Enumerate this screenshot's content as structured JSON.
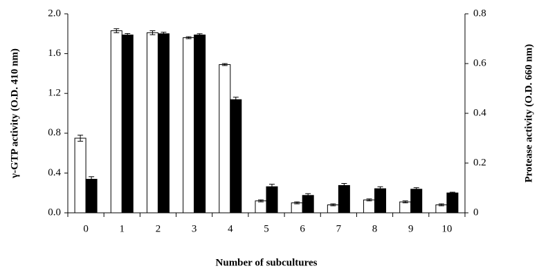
{
  "chart_data": {
    "type": "bar",
    "x_label": "Number of subcultures",
    "y_label": "γ-GTP activity (O.D. 410 nm)",
    "y2_label": "Protease  activity (O.D. 660 nm)",
    "categories": [
      "0",
      "1",
      "2",
      "3",
      "4",
      "5",
      "6",
      "7",
      "8",
      "9",
      "10"
    ],
    "series": [
      {
        "color": "#ffffff",
        "values": [
          0.75,
          1.83,
          1.81,
          1.76,
          1.49,
          0.12,
          0.1,
          0.08,
          0.13,
          0.11,
          0.08
        ],
        "errors": [
          0.03,
          0.02,
          0.02,
          0.01,
          0.01,
          0.01,
          0.01,
          0.01,
          0.01,
          0.01,
          0.01
        ]
      },
      {
        "color": "#000000",
        "axis": "y2",
        "values": [
          0.135,
          0.715,
          0.72,
          0.715,
          0.455,
          0.105,
          0.07,
          0.11,
          0.097,
          0.095,
          0.08
        ],
        "errors": [
          0.01,
          0.006,
          0.006,
          0.005,
          0.01,
          0.01,
          0.007,
          0.008,
          0.008,
          0.006,
          0.003
        ]
      }
    ],
    "ylim": [
      0,
      2.0
    ],
    "yticks": [
      {
        "value": 0,
        "label": "0.0"
      },
      0.4,
      0.8,
      1.2,
      1.6,
      {
        "value": 2,
        "label": "2.0"
      }
    ],
    "y2lim": [
      0,
      0.8
    ],
    "y2ticks": [
      0,
      0.2,
      0.4,
      0.6,
      0.8
    ]
  }
}
